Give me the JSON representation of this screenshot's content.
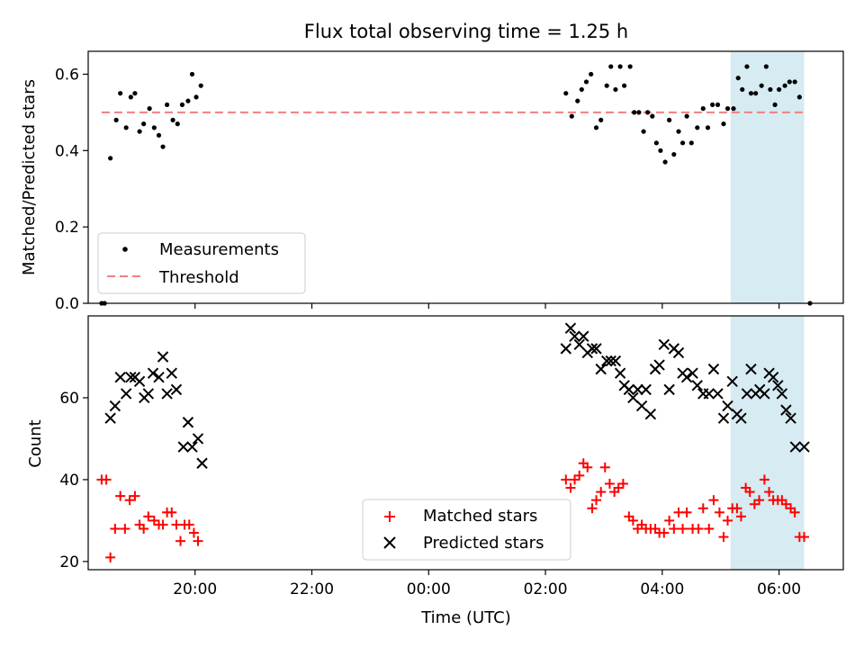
{
  "chart_data": [
    {
      "type": "scatter",
      "title": "Flux total observing time = 1.25 h",
      "xlabel": "",
      "ylabel": "Matched/Predicted stars",
      "x_unit": "hours since 00:00 UTC",
      "xlim": [
        -5.83,
        7.1
      ],
      "ylim": [
        0,
        0.66
      ],
      "yticks": [
        0.0,
        0.2,
        0.4,
        0.6
      ],
      "xticks": [
        -4,
        -2,
        0,
        2,
        4,
        6
      ],
      "threshold": 0.5,
      "highlight_span": [
        5.17,
        6.43
      ],
      "legend_loc": "lower left",
      "series": [
        {
          "name": "Measurements",
          "color": "#000000",
          "marker": "dot",
          "points": [
            [
              -5.6,
              0.0
            ],
            [
              -5.55,
              0.0
            ],
            [
              -5.45,
              0.38
            ],
            [
              -5.35,
              0.48
            ],
            [
              -5.28,
              0.55
            ],
            [
              -5.18,
              0.46
            ],
            [
              -5.1,
              0.54
            ],
            [
              -5.03,
              0.55
            ],
            [
              -4.95,
              0.45
            ],
            [
              -4.88,
              0.47
            ],
            [
              -4.78,
              0.51
            ],
            [
              -4.7,
              0.46
            ],
            [
              -4.62,
              0.44
            ],
            [
              -4.55,
              0.41
            ],
            [
              -4.48,
              0.52
            ],
            [
              -4.38,
              0.48
            ],
            [
              -4.3,
              0.47
            ],
            [
              -4.22,
              0.52
            ],
            [
              -4.12,
              0.53
            ],
            [
              -4.05,
              0.6
            ],
            [
              -3.98,
              0.54
            ],
            [
              -3.9,
              0.57
            ],
            [
              2.35,
              0.55
            ],
            [
              2.45,
              0.49
            ],
            [
              2.55,
              0.53
            ],
            [
              2.62,
              0.56
            ],
            [
              2.7,
              0.58
            ],
            [
              2.78,
              0.6
            ],
            [
              2.87,
              0.46
            ],
            [
              2.95,
              0.48
            ],
            [
              3.05,
              0.57
            ],
            [
              3.12,
              0.62
            ],
            [
              3.2,
              0.56
            ],
            [
              3.28,
              0.62
            ],
            [
              3.35,
              0.57
            ],
            [
              3.45,
              0.62
            ],
            [
              3.52,
              0.5
            ],
            [
              3.6,
              0.5
            ],
            [
              3.68,
              0.45
            ],
            [
              3.75,
              0.5
            ],
            [
              3.83,
              0.49
            ],
            [
              3.9,
              0.42
            ],
            [
              3.97,
              0.4
            ],
            [
              4.05,
              0.37
            ],
            [
              4.12,
              0.48
            ],
            [
              4.2,
              0.39
            ],
            [
              4.28,
              0.45
            ],
            [
              4.35,
              0.42
            ],
            [
              4.42,
              0.49
            ],
            [
              4.5,
              0.42
            ],
            [
              4.6,
              0.46
            ],
            [
              4.7,
              0.51
            ],
            [
              4.78,
              0.46
            ],
            [
              4.86,
              0.52
            ],
            [
              4.95,
              0.52
            ],
            [
              5.05,
              0.47
            ],
            [
              5.12,
              0.51
            ],
            [
              5.22,
              0.51
            ],
            [
              5.3,
              0.59
            ],
            [
              5.37,
              0.56
            ],
            [
              5.45,
              0.62
            ],
            [
              5.52,
              0.55
            ],
            [
              5.6,
              0.55
            ],
            [
              5.7,
              0.57
            ],
            [
              5.78,
              0.62
            ],
            [
              5.85,
              0.56
            ],
            [
              5.93,
              0.52
            ],
            [
              6.0,
              0.56
            ],
            [
              6.1,
              0.57
            ],
            [
              6.18,
              0.58
            ],
            [
              6.27,
              0.58
            ],
            [
              6.35,
              0.54
            ],
            [
              6.53,
              0.0
            ]
          ]
        },
        {
          "name": "Threshold",
          "color": "#f08080",
          "style": "dashed",
          "x": [
            -5.6,
            6.43
          ],
          "y": [
            0.5,
            0.5
          ]
        }
      ]
    },
    {
      "type": "scatter",
      "title": "",
      "xlabel": "Time (UTC)",
      "ylabel": "Count",
      "x_unit": "hours since 00:00 UTC",
      "xlim": [
        -5.83,
        7.1
      ],
      "ylim": [
        18,
        80
      ],
      "yticks": [
        20,
        40,
        60
      ],
      "xticks": [
        -4,
        -2,
        0,
        2,
        4,
        6
      ],
      "xtick_labels": [
        "20:00",
        "22:00",
        "00:00",
        "02:00",
        "04:00",
        "06:00"
      ],
      "highlight_span": [
        5.17,
        6.43
      ],
      "legend_loc": "lower center",
      "series": [
        {
          "name": "Matched stars",
          "color": "#ff0000",
          "marker": "plus",
          "points": [
            [
              -5.6,
              40
            ],
            [
              -5.52,
              40
            ],
            [
              -5.45,
              21
            ],
            [
              -5.37,
              28
            ],
            [
              -5.28,
              36
            ],
            [
              -5.2,
              28
            ],
            [
              -5.12,
              35
            ],
            [
              -5.03,
              36
            ],
            [
              -4.95,
              29
            ],
            [
              -4.88,
              28
            ],
            [
              -4.8,
              31
            ],
            [
              -4.7,
              30
            ],
            [
              -4.62,
              29
            ],
            [
              -4.55,
              29
            ],
            [
              -4.48,
              32
            ],
            [
              -4.4,
              32
            ],
            [
              -4.32,
              29
            ],
            [
              -4.25,
              25
            ],
            [
              -4.18,
              29
            ],
            [
              -4.1,
              29
            ],
            [
              -4.02,
              27
            ],
            [
              -3.95,
              25
            ],
            [
              2.35,
              40
            ],
            [
              2.43,
              38
            ],
            [
              2.5,
              40
            ],
            [
              2.58,
              41
            ],
            [
              2.65,
              44
            ],
            [
              2.72,
              43
            ],
            [
              2.8,
              33
            ],
            [
              2.87,
              35
            ],
            [
              2.95,
              37
            ],
            [
              3.02,
              43
            ],
            [
              3.1,
              39
            ],
            [
              3.18,
              37
            ],
            [
              3.25,
              38
            ],
            [
              3.33,
              39
            ],
            [
              3.43,
              31
            ],
            [
              3.5,
              30
            ],
            [
              3.58,
              28
            ],
            [
              3.65,
              29
            ],
            [
              3.72,
              28
            ],
            [
              3.8,
              28
            ],
            [
              3.88,
              28
            ],
            [
              3.95,
              27
            ],
            [
              4.03,
              27
            ],
            [
              4.12,
              30
            ],
            [
              4.2,
              28
            ],
            [
              4.28,
              32
            ],
            [
              4.35,
              28
            ],
            [
              4.42,
              32
            ],
            [
              4.52,
              28
            ],
            [
              4.62,
              28
            ],
            [
              4.7,
              33
            ],
            [
              4.8,
              28
            ],
            [
              4.88,
              35
            ],
            [
              4.98,
              32
            ],
            [
              5.05,
              26
            ],
            [
              5.12,
              30
            ],
            [
              5.2,
              33
            ],
            [
              5.28,
              33
            ],
            [
              5.35,
              31
            ],
            [
              5.43,
              38
            ],
            [
              5.5,
              37
            ],
            [
              5.58,
              34
            ],
            [
              5.66,
              35
            ],
            [
              5.75,
              40
            ],
            [
              5.83,
              37
            ],
            [
              5.9,
              35
            ],
            [
              5.98,
              35
            ],
            [
              6.05,
              35
            ],
            [
              6.12,
              34
            ],
            [
              6.2,
              33
            ],
            [
              6.27,
              32
            ],
            [
              6.35,
              26
            ],
            [
              6.43,
              26
            ]
          ]
        },
        {
          "name": "Predicted stars",
          "color": "#000000",
          "marker": "x",
          "points": [
            [
              -5.45,
              55
            ],
            [
              -5.37,
              58
            ],
            [
              -5.28,
              65
            ],
            [
              -5.18,
              61
            ],
            [
              -5.1,
              65
            ],
            [
              -5.03,
              65
            ],
            [
              -4.95,
              64
            ],
            [
              -4.87,
              60
            ],
            [
              -4.8,
              61
            ],
            [
              -4.72,
              66
            ],
            [
              -4.62,
              65
            ],
            [
              -4.55,
              70
            ],
            [
              -4.48,
              61
            ],
            [
              -4.4,
              66
            ],
            [
              -4.32,
              62
            ],
            [
              -4.2,
              48
            ],
            [
              -4.12,
              54
            ],
            [
              -4.05,
              48
            ],
            [
              -3.95,
              50
            ],
            [
              -3.88,
              44
            ],
            [
              2.35,
              72
            ],
            [
              2.43,
              77
            ],
            [
              2.5,
              75
            ],
            [
              2.58,
              73
            ],
            [
              2.65,
              75
            ],
            [
              2.72,
              71
            ],
            [
              2.8,
              72
            ],
            [
              2.87,
              72
            ],
            [
              2.95,
              67
            ],
            [
              3.05,
              69
            ],
            [
              3.12,
              69
            ],
            [
              3.2,
              69
            ],
            [
              3.28,
              66
            ],
            [
              3.35,
              63
            ],
            [
              3.43,
              62
            ],
            [
              3.5,
              60
            ],
            [
              3.58,
              62
            ],
            [
              3.65,
              58
            ],
            [
              3.72,
              62
            ],
            [
              3.8,
              56
            ],
            [
              3.88,
              67
            ],
            [
              3.95,
              68
            ],
            [
              4.03,
              73
            ],
            [
              4.12,
              62
            ],
            [
              4.2,
              72
            ],
            [
              4.28,
              71
            ],
            [
              4.35,
              66
            ],
            [
              4.42,
              65
            ],
            [
              4.52,
              66
            ],
            [
              4.6,
              63
            ],
            [
              4.7,
              61
            ],
            [
              4.8,
              61
            ],
            [
              4.88,
              67
            ],
            [
              4.95,
              61
            ],
            [
              5.05,
              55
            ],
            [
              5.12,
              58
            ],
            [
              5.2,
              64
            ],
            [
              5.28,
              56
            ],
            [
              5.35,
              55
            ],
            [
              5.45,
              61
            ],
            [
              5.52,
              67
            ],
            [
              5.6,
              61
            ],
            [
              5.67,
              62
            ],
            [
              5.75,
              61
            ],
            [
              5.83,
              66
            ],
            [
              5.9,
              65
            ],
            [
              5.98,
              63
            ],
            [
              6.05,
              61
            ],
            [
              6.12,
              57
            ],
            [
              6.2,
              55
            ],
            [
              6.28,
              48
            ],
            [
              6.43,
              48
            ]
          ]
        }
      ]
    }
  ]
}
